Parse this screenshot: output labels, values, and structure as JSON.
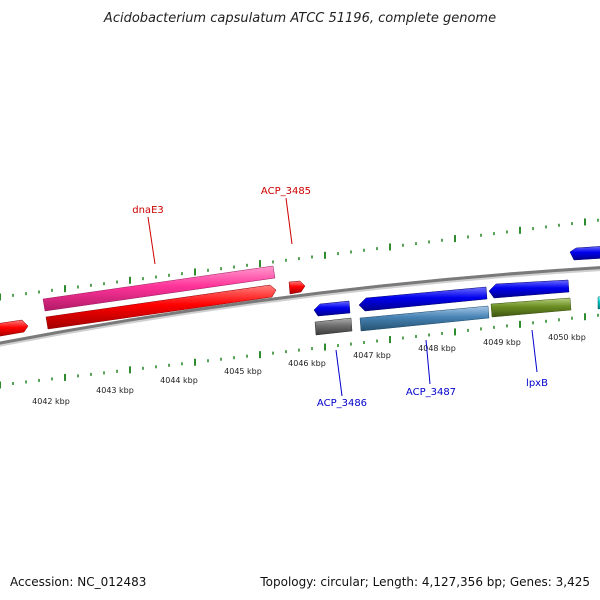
{
  "title": "Acidobacterium capsulatum ATCC 51196, complete genome",
  "footer": {
    "accession": "Accession: NC_012483",
    "topology": "Topology: circular; Length: 4,127,356 bp; Genes: 3,425"
  },
  "scale_labels": [
    "4042 kbp",
    "4043 kbp",
    "4044 kbp",
    "4045 kbp",
    "4046 kbp",
    "4047 kbp",
    "4048 kbp",
    "4049 kbp",
    "4050 kbp"
  ],
  "gene_labels_forward": [
    "dnaE3",
    "ACP_3485"
  ],
  "gene_labels_reverse": [
    "ACP_3486",
    "ACP_3487",
    "lpxB"
  ],
  "colors": {
    "backbone": "#888888",
    "tick": "#2e8b2e",
    "forward_label": "#cc0000",
    "reverse_label": "#0000cc",
    "forward_cds": "#ff0000",
    "forward_gene": "#ff3399",
    "reverse_cds": "#0000ee",
    "reverse_gene_gray": "#6e6e6e",
    "reverse_gene_steel": "#4682b4",
    "reverse_gene_olive": "#6b8e23",
    "teal": "#00cccc"
  }
}
